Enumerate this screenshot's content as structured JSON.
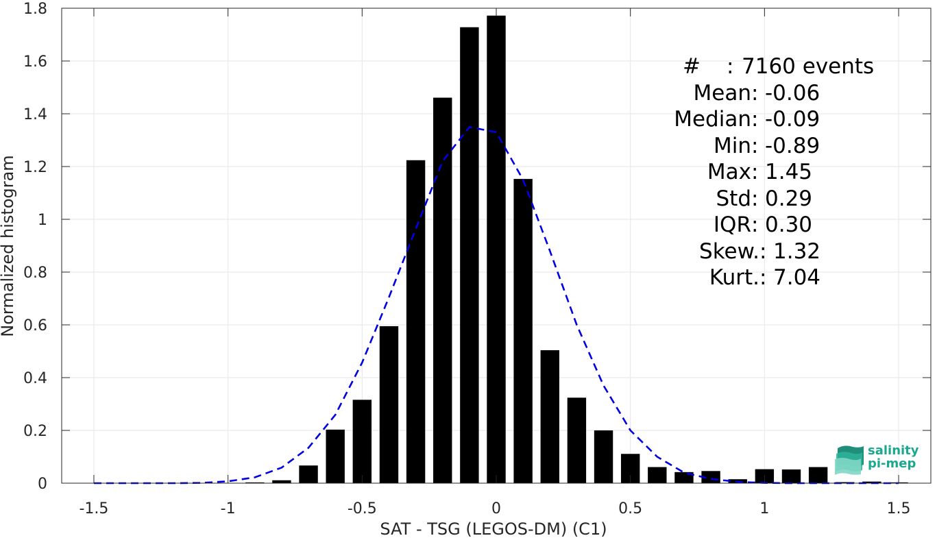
{
  "chart_data": {
    "type": "bar",
    "xlabel": "SAT - TSG (LEGOS-DM) (C1)",
    "ylabel": "Normalized histogram",
    "xlim": [
      -1.62,
      1.62
    ],
    "ylim": [
      0,
      1.8
    ],
    "xticks": [
      -1.5,
      -1,
      -0.5,
      0,
      0.5,
      1,
      1.5
    ],
    "xtick_labels": [
      "-1.5",
      "-1",
      "-0.5",
      "0",
      "0.5",
      "1",
      "1.5"
    ],
    "yticks": [
      0,
      0.2,
      0.4,
      0.6,
      0.8,
      1,
      1.2,
      1.4,
      1.6,
      1.8
    ],
    "ytick_labels": [
      "0",
      "0.2",
      "0.4",
      "0.6",
      "0.8",
      "1",
      "1.2",
      "1.4",
      "1.6",
      "1.8"
    ],
    "grid": true,
    "bar_color": "#000000",
    "bars": {
      "x": [
        -1.5,
        -1.4,
        -1.3,
        -1.2,
        -1.1,
        -1.0,
        -0.9,
        -0.8,
        -0.7,
        -0.6,
        -0.5,
        -0.4,
        -0.3,
        -0.2,
        -0.1,
        0.0,
        0.1,
        0.2,
        0.3,
        0.4,
        0.5,
        0.6,
        0.7,
        0.8,
        0.9,
        1.0,
        1.1,
        1.2,
        1.3,
        1.4,
        1.5
      ],
      "values": [
        0,
        0,
        0,
        0,
        0,
        0,
        0.003,
        0.011,
        0.067,
        0.203,
        0.316,
        0.595,
        1.224,
        1.461,
        1.728,
        1.772,
        1.153,
        0.504,
        0.324,
        0.2,
        0.111,
        0.061,
        0.042,
        0.046,
        0.015,
        0.053,
        0.052,
        0.061,
        0.004,
        0.006,
        0.003
      ]
    },
    "fit_curve": {
      "style": "dashed",
      "color": "#0000e0",
      "x": [
        -1.5,
        -1.4,
        -1.3,
        -1.2,
        -1.1,
        -1.0,
        -0.9,
        -0.8,
        -0.7,
        -0.6,
        -0.5,
        -0.4,
        -0.3,
        -0.2,
        -0.1,
        0.0,
        0.1,
        0.2,
        0.3,
        0.4,
        0.5,
        0.6,
        0.7,
        0.8,
        0.9,
        1.0,
        1.1,
        1.2,
        1.3,
        1.4,
        1.5
      ],
      "y": [
        0.0,
        0.0,
        0.0,
        0.0,
        0.001,
        0.007,
        0.022,
        0.059,
        0.134,
        0.259,
        0.457,
        0.705,
        0.964,
        1.22,
        1.35,
        1.33,
        1.15,
        0.88,
        0.6,
        0.37,
        0.2,
        0.1,
        0.04,
        0.016,
        0.005,
        0.001,
        0.0,
        0.0,
        0.0,
        0.0,
        0.0
      ]
    }
  },
  "stats": [
    {
      "key": "#",
      "value": "7160 events"
    },
    {
      "key": "Mean",
      "value": "-0.06"
    },
    {
      "key": "Median",
      "value": "-0.09"
    },
    {
      "key": "Min",
      "value": "-0.89"
    },
    {
      "key": "Max",
      "value": "1.45"
    },
    {
      "key": "Std",
      "value": "0.29"
    },
    {
      "key": "IQR",
      "value": "0.30"
    },
    {
      "key": "Skew.",
      "value": "1.32"
    },
    {
      "key": "Kurt.",
      "value": "7.04"
    }
  ],
  "logo": {
    "line1": "salinity",
    "line2": "pi-mep",
    "color": "#1aa88e"
  }
}
